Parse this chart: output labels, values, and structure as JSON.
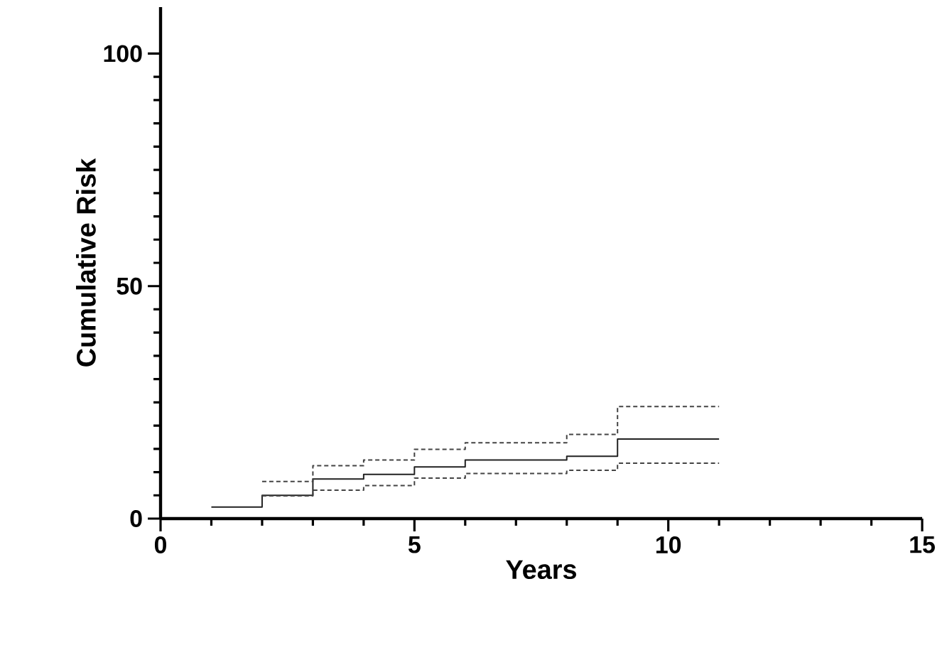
{
  "chart_data": {
    "type": "step",
    "xlabel": "Years",
    "ylabel": "Cumulative Risk",
    "xlim": [
      0,
      15
    ],
    "ylim": [
      0,
      110
    ],
    "xticks": [
      0,
      5,
      10,
      15
    ],
    "yticks": [
      0,
      50,
      100
    ],
    "grid": false,
    "marker": "none",
    "series": [
      {
        "color": "#222222",
        "line_style": "solid",
        "x": [
          1,
          2,
          3,
          4,
          5,
          6,
          8,
          9,
          11
        ],
        "values": [
          2.5,
          5,
          8.5,
          9.5,
          11.1,
          12.6,
          13.4,
          17.1,
          17.1
        ]
      },
      {
        "color": "#444444",
        "line_style": "dashed",
        "x": [
          2,
          3,
          4,
          5,
          6,
          8,
          9,
          11
        ],
        "values": [
          8,
          11.4,
          12.6,
          14.9,
          16.3,
          18.1,
          24.1,
          24.1
        ]
      },
      {
        "color": "#444444",
        "line_style": "dashed",
        "x": [
          2,
          3,
          4,
          5,
          6,
          8,
          9,
          11
        ],
        "values": [
          4.9,
          6.1,
          7.1,
          8.7,
          9.7,
          10.4,
          11.9,
          11.9
        ]
      }
    ]
  }
}
